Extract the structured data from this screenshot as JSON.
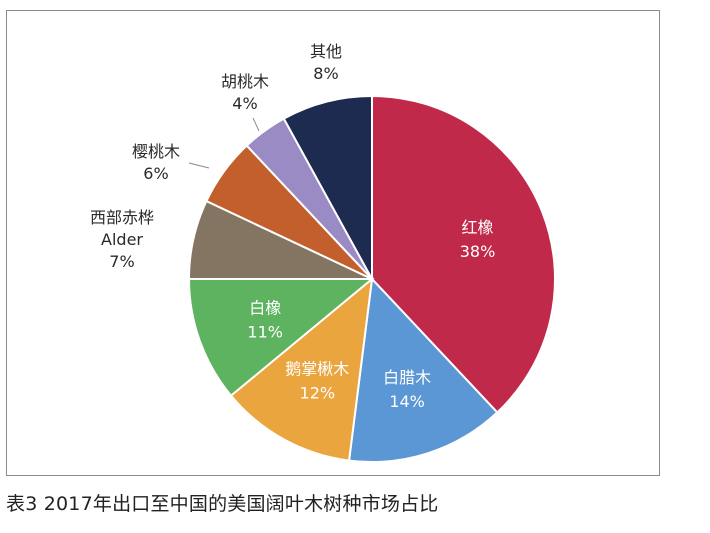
{
  "chart_data": {
    "type": "pie",
    "slices": [
      {
        "name": "红橡",
        "value": 38,
        "label": "38%",
        "color": "#c0294a",
        "label_pos": "inside"
      },
      {
        "name": "白腊木",
        "value": 14,
        "label": "14%",
        "color": "#5b97d4",
        "label_pos": "inside"
      },
      {
        "name": "鹅掌楸木",
        "value": 12,
        "label": "12%",
        "color": "#eba53f",
        "label_pos": "inside"
      },
      {
        "name": "白橡",
        "value": 11,
        "label": "11%",
        "color": "#5eb360",
        "label_pos": "inside"
      },
      {
        "name": "西部赤桦",
        "name2": "Alder",
        "value": 7,
        "label": "7%",
        "color": "#847462",
        "label_pos": "outside"
      },
      {
        "name": "樱桃木",
        "value": 6,
        "label": "6%",
        "color": "#c25f2c",
        "label_pos": "outside"
      },
      {
        "name": "胡桃木",
        "value": 4,
        "label": "4%",
        "color": "#9b8bc4",
        "label_pos": "outside"
      },
      {
        "name": "其他",
        "value": 8,
        "label": "8%",
        "color": "#1e2b50",
        "label_pos": "outside"
      }
    ],
    "start_angle": "12 o'clock",
    "direction": "clockwise",
    "legend": "none",
    "caption": "表3 2017年出口至中国的美国阔叶木树种市场占比"
  }
}
